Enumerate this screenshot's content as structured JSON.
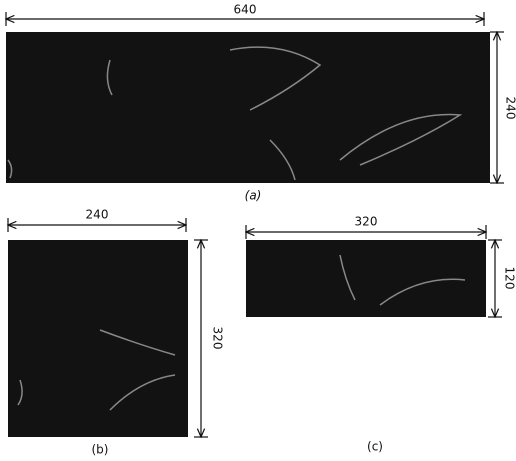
{
  "panels": [
    {
      "width_label": "640",
      "height_label": "240",
      "caption": "(a)"
    },
    {
      "width_label": "240",
      "height_label": "320",
      "caption": "(b)"
    },
    {
      "width_label": "320",
      "height_label": "120",
      "caption": "(c)"
    }
  ]
}
